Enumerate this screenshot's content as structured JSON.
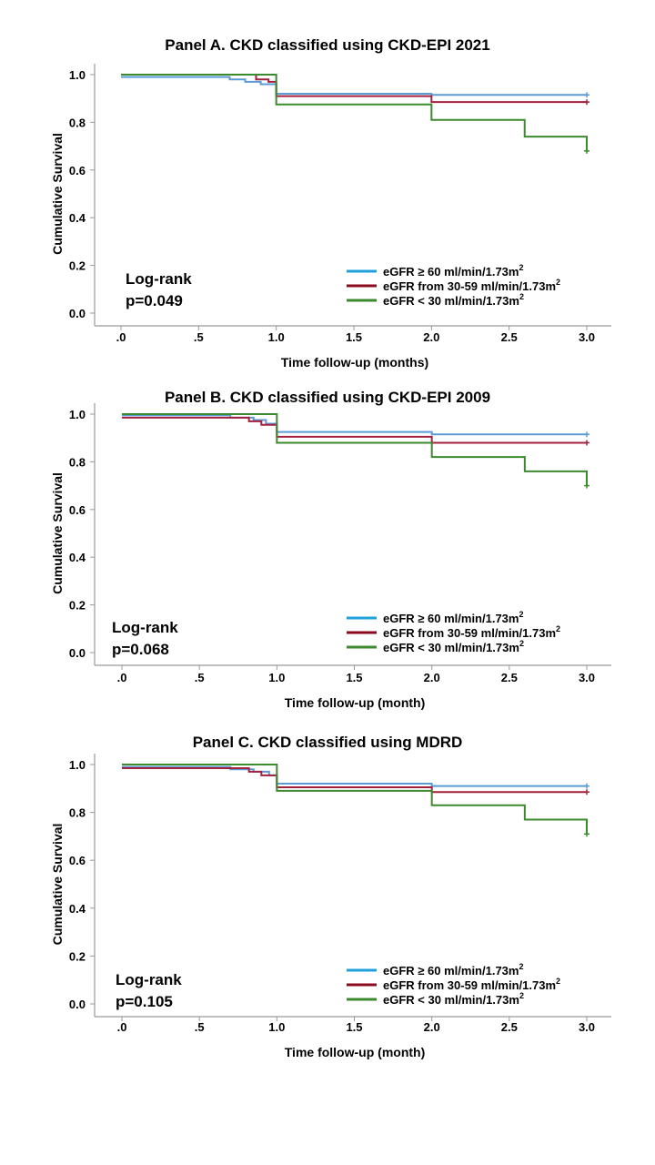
{
  "chart_data": [
    {
      "type": "line",
      "subtype": "kaplan-meier",
      "title": "Panel A. CKD classified using CKD-EPI 2021",
      "xlabel": "Time follow-up (months)",
      "ylabel": "Cumulative Survival",
      "xlim": [
        0,
        3
      ],
      "ylim": [
        0,
        1
      ],
      "x_ticks": [
        0,
        0.5,
        1,
        1.5,
        2,
        2.5,
        3
      ],
      "x_tick_labels": [
        ".0",
        ".5",
        "1.0",
        "1.5",
        "2.0",
        "2.5",
        "3.0"
      ],
      "y_ticks": [
        0,
        0.2,
        0.4,
        0.6,
        0.8,
        1
      ],
      "y_tick_labels": [
        "0.0",
        "0.2",
        "0.4",
        "0.6",
        "0.8",
        "1.0"
      ],
      "annotation": [
        "Log-rank",
        "p=0.049"
      ],
      "legend_position": "bottom-right",
      "series": [
        {
          "name": "eGFR ≥ 60 ml/min/1.73m",
          "superscript": "2",
          "color": "#5b9bd5",
          "legend_color": "#1fa2dc",
          "steps": [
            [
              0,
              0.99
            ],
            [
              0.7,
              0.98
            ],
            [
              0.8,
              0.97
            ],
            [
              0.9,
              0.96
            ],
            [
              1.0,
              0.92
            ],
            [
              2.0,
              0.915
            ],
            [
              3.0,
              0.915
            ]
          ],
          "censor": [
            [
              3.0,
              0.915
            ]
          ]
        },
        {
          "name": "eGFR from 30-59 ml/min/1.73m",
          "superscript": "2",
          "color": "#a3203e",
          "legend_color": "#8b0a1e",
          "steps": [
            [
              0,
              1.0
            ],
            [
              0.87,
              0.98
            ],
            [
              0.95,
              0.97
            ],
            [
              1.0,
              0.91
            ],
            [
              2.0,
              0.885
            ],
            [
              3.0,
              0.885
            ]
          ],
          "censor": [
            [
              3.0,
              0.885
            ]
          ]
        },
        {
          "name": "eGFR < 30 ml/min/1.73m",
          "superscript": "2",
          "color": "#3c8a2e",
          "legend_color": "#3c8a2e",
          "steps": [
            [
              0,
              1.0
            ],
            [
              1.0,
              0.875
            ],
            [
              2.0,
              0.81
            ],
            [
              2.6,
              0.74
            ],
            [
              3.0,
              0.74
            ],
            [
              3.0,
              0.68
            ]
          ],
          "censor": [
            [
              3.0,
              0.68
            ]
          ]
        }
      ]
    },
    {
      "type": "line",
      "subtype": "kaplan-meier",
      "title": "Panel B. CKD classified using CKD-EPI 2009",
      "xlabel": "Time follow-up (month)",
      "ylabel": "Cumulative Survival",
      "xlim": [
        0,
        3
      ],
      "ylim": [
        0,
        1
      ],
      "x_ticks": [
        0,
        0.5,
        1,
        1.5,
        2,
        2.5,
        3
      ],
      "x_tick_labels": [
        ".0",
        ".5",
        "1.0",
        "1.5",
        "2.0",
        "2.5",
        "3.0"
      ],
      "y_ticks": [
        0,
        0.2,
        0.4,
        0.6,
        0.8,
        1
      ],
      "y_tick_labels": [
        "0.0",
        "0.2",
        "0.4",
        "0.6",
        "0.8",
        "1.0"
      ],
      "annotation": [
        "Log-rank",
        "p=0.068"
      ],
      "legend_position": "bottom-right",
      "series": [
        {
          "name": "eGFR ≥ 60 ml/min/1.73m",
          "superscript": "2",
          "color": "#5b9bd5",
          "legend_color": "#1fa2dc",
          "steps": [
            [
              0,
              0.995
            ],
            [
              0.7,
              0.985
            ],
            [
              0.85,
              0.975
            ],
            [
              0.93,
              0.96
            ],
            [
              1.0,
              0.925
            ],
            [
              2.0,
              0.915
            ],
            [
              3.0,
              0.915
            ]
          ],
          "censor": [
            [
              3.0,
              0.915
            ]
          ]
        },
        {
          "name": "eGFR from 30-59 ml/min/1.73m",
          "superscript": "2",
          "color": "#a3203e",
          "legend_color": "#8b0a1e",
          "steps": [
            [
              0,
              0.985
            ],
            [
              0.82,
              0.97
            ],
            [
              0.9,
              0.955
            ],
            [
              1.0,
              0.905
            ],
            [
              2.0,
              0.88
            ],
            [
              3.0,
              0.88
            ]
          ],
          "censor": [
            [
              3.0,
              0.88
            ]
          ]
        },
        {
          "name": "eGFR < 30 ml/min/1.73m",
          "superscript": "2",
          "color": "#3c8a2e",
          "legend_color": "#3c8a2e",
          "steps": [
            [
              0,
              1.0
            ],
            [
              1.0,
              0.88
            ],
            [
              2.0,
              0.82
            ],
            [
              2.6,
              0.76
            ],
            [
              3.0,
              0.76
            ],
            [
              3.0,
              0.7
            ]
          ],
          "censor": [
            [
              3.0,
              0.7
            ]
          ]
        }
      ]
    },
    {
      "type": "line",
      "subtype": "kaplan-meier",
      "title": "Panel C. CKD classified using MDRD",
      "xlabel": "Time follow-up (month)",
      "ylabel": "Cumulative Survival",
      "xlim": [
        0,
        3
      ],
      "ylim": [
        0,
        1
      ],
      "x_ticks": [
        0,
        0.5,
        1,
        1.5,
        2,
        2.5,
        3
      ],
      "x_tick_labels": [
        ".0",
        ".5",
        "1.0",
        "1.5",
        "2.0",
        "2.5",
        "3.0"
      ],
      "y_ticks": [
        0,
        0.2,
        0.4,
        0.6,
        0.8,
        1
      ],
      "y_tick_labels": [
        "0.0",
        "0.2",
        "0.4",
        "0.6",
        "0.8",
        "1.0"
      ],
      "annotation": [
        "Log-rank",
        "p=0.105"
      ],
      "legend_position": "bottom-right",
      "series": [
        {
          "name": "eGFR ≥ 60 ml/min/1.73m",
          "superscript": "2",
          "color": "#5b9bd5",
          "legend_color": "#1fa2dc",
          "steps": [
            [
              0,
              0.99
            ],
            [
              0.7,
              0.98
            ],
            [
              0.85,
              0.97
            ],
            [
              0.95,
              0.955
            ],
            [
              1.0,
              0.92
            ],
            [
              2.0,
              0.91
            ],
            [
              3.0,
              0.91
            ]
          ],
          "censor": [
            [
              3.0,
              0.91
            ]
          ]
        },
        {
          "name": "eGFR from 30-59 ml/min/1.73m",
          "superscript": "2",
          "color": "#a3203e",
          "legend_color": "#8b0a1e",
          "steps": [
            [
              0,
              0.985
            ],
            [
              0.82,
              0.97
            ],
            [
              0.9,
              0.955
            ],
            [
              1.0,
              0.905
            ],
            [
              2.0,
              0.885
            ],
            [
              3.0,
              0.885
            ]
          ],
          "censor": [
            [
              3.0,
              0.885
            ]
          ]
        },
        {
          "name": "eGFR < 30 ml/min/1.73m",
          "superscript": "2",
          "color": "#3c8a2e",
          "legend_color": "#3c8a2e",
          "steps": [
            [
              0,
              1.0
            ],
            [
              1.0,
              0.89
            ],
            [
              2.0,
              0.83
            ],
            [
              2.6,
              0.77
            ],
            [
              3.0,
              0.77
            ],
            [
              3.0,
              0.71
            ]
          ],
          "censor": [
            [
              3.0,
              0.71
            ]
          ]
        }
      ]
    }
  ]
}
